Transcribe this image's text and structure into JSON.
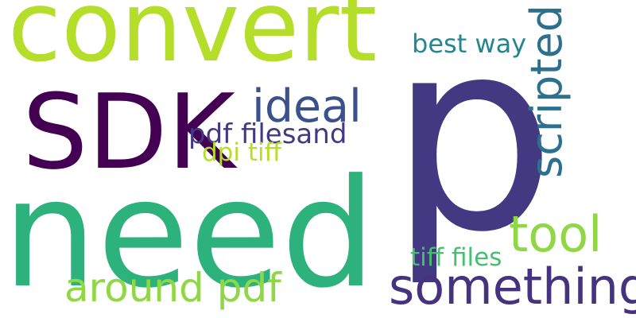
{
  "words": {
    "convert": {
      "text": "convert",
      "color": "#b5de2b"
    },
    "sdk": {
      "text": "SDK",
      "color": "#440154"
    },
    "need": {
      "text": "need",
      "color": "#2db27d"
    },
    "p": {
      "text": "p",
      "color": "#433982"
    },
    "ideal": {
      "text": "ideal",
      "color": "#3b518b"
    },
    "pdffiles": {
      "text": "pdf filesand",
      "color": "#433982"
    },
    "dpitiff": {
      "text": "dpi tiff",
      "color": "#b5de2b"
    },
    "bestway": {
      "text": "best way",
      "color": "#24868e"
    },
    "scripted": {
      "text": "scripted",
      "color": "#2d708e"
    },
    "tool": {
      "text": "tool",
      "color": "#8fd744"
    },
    "tifffiles": {
      "text": "tiff files",
      "color": "#46c06f"
    },
    "around": {
      "text": "around pdf",
      "color": "#8fd744"
    },
    "something": {
      "text": "something",
      "color": "#46327e"
    }
  }
}
